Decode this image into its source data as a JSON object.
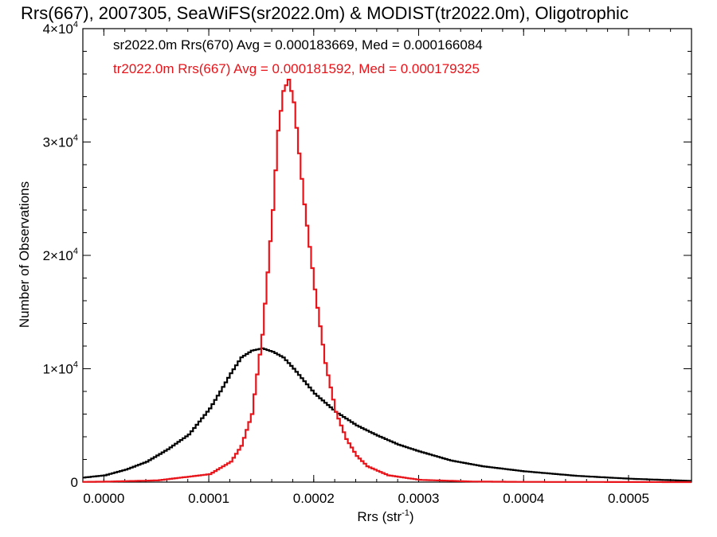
{
  "chart_data": {
    "type": "histogram",
    "title": "Rrs(667), 2007305, SeaWiFS(sr2022.0m) & MODIST(tr2022.0m), Oligotrophic",
    "xlabel": "Rrs (str",
    "xlabel_sup": "-1",
    "xlabel_close": ")",
    "ylabel": "Number of Observations",
    "xlim": [
      -2e-05,
      0.00056
    ],
    "ylim": [
      0,
      40000
    ],
    "x_ticks": [
      {
        "value": 0.0,
        "label": "0.0000"
      },
      {
        "value": 0.0001,
        "label": "0.0001"
      },
      {
        "value": 0.0002,
        "label": "0.0002"
      },
      {
        "value": 0.0003,
        "label": "0.0003"
      },
      {
        "value": 0.0004,
        "label": "0.0004"
      },
      {
        "value": 0.0005,
        "label": "0.0005"
      }
    ],
    "y_ticks": [
      {
        "value": 0,
        "label": "0",
        "mant": "",
        "exp": ""
      },
      {
        "value": 10000,
        "label": "",
        "mant": "1×10",
        "exp": "4"
      },
      {
        "value": 20000,
        "label": "",
        "mant": "2×10",
        "exp": "4"
      },
      {
        "value": 30000,
        "label": "",
        "mant": "3×10",
        "exp": "4"
      },
      {
        "value": 40000,
        "label": "",
        "mant": "4×10",
        "exp": "4"
      }
    ],
    "series": [
      {
        "name": "sr2022.0m Rrs(670)",
        "annotation": "sr2022.0m Rrs(670) Avg = 0.000183669, Med = 0.000166084",
        "color": "#000000",
        "x": [
          -2e-05,
          0.0,
          2e-05,
          4e-05,
          6e-05,
          8e-05,
          0.0001,
          0.00011,
          0.00012,
          0.00013,
          0.00014,
          0.00015,
          0.00016,
          0.00017,
          0.00018,
          0.0002,
          0.00022,
          0.00024,
          0.00026,
          0.00028,
          0.0003,
          0.00033,
          0.00036,
          0.0004,
          0.00045,
          0.0005,
          0.00056
        ],
        "y": [
          400,
          600,
          1100,
          1800,
          2900,
          4200,
          6500,
          8000,
          9600,
          11000,
          11600,
          11800,
          11500,
          11000,
          10000,
          7800,
          6200,
          5000,
          4100,
          3300,
          2700,
          1900,
          1400,
          950,
          550,
          300,
          100
        ]
      },
      {
        "name": "tr2022.0m Rrs(667)",
        "annotation": "tr2022.0m Rrs(667) Avg = 0.000181592, Med = 0.000179325",
        "color": "#e8141a",
        "x": [
          -2e-05,
          0.0,
          5e-05,
          0.0001,
          0.00012,
          0.00013,
          0.00014,
          0.00015,
          0.00016,
          0.000165,
          0.00017,
          0.000175,
          0.00018,
          0.000185,
          0.00019,
          0.0002,
          0.00021,
          0.00022,
          0.00023,
          0.00024,
          0.00025,
          0.00027,
          0.0003,
          0.00035,
          0.0004,
          0.00056
        ],
        "y": [
          20,
          40,
          150,
          700,
          1800,
          3200,
          6000,
          13000,
          24000,
          31000,
          34500,
          35500,
          33500,
          29000,
          24500,
          17000,
          10500,
          6200,
          3800,
          2300,
          1400,
          600,
          200,
          50,
          20,
          0
        ]
      }
    ]
  }
}
